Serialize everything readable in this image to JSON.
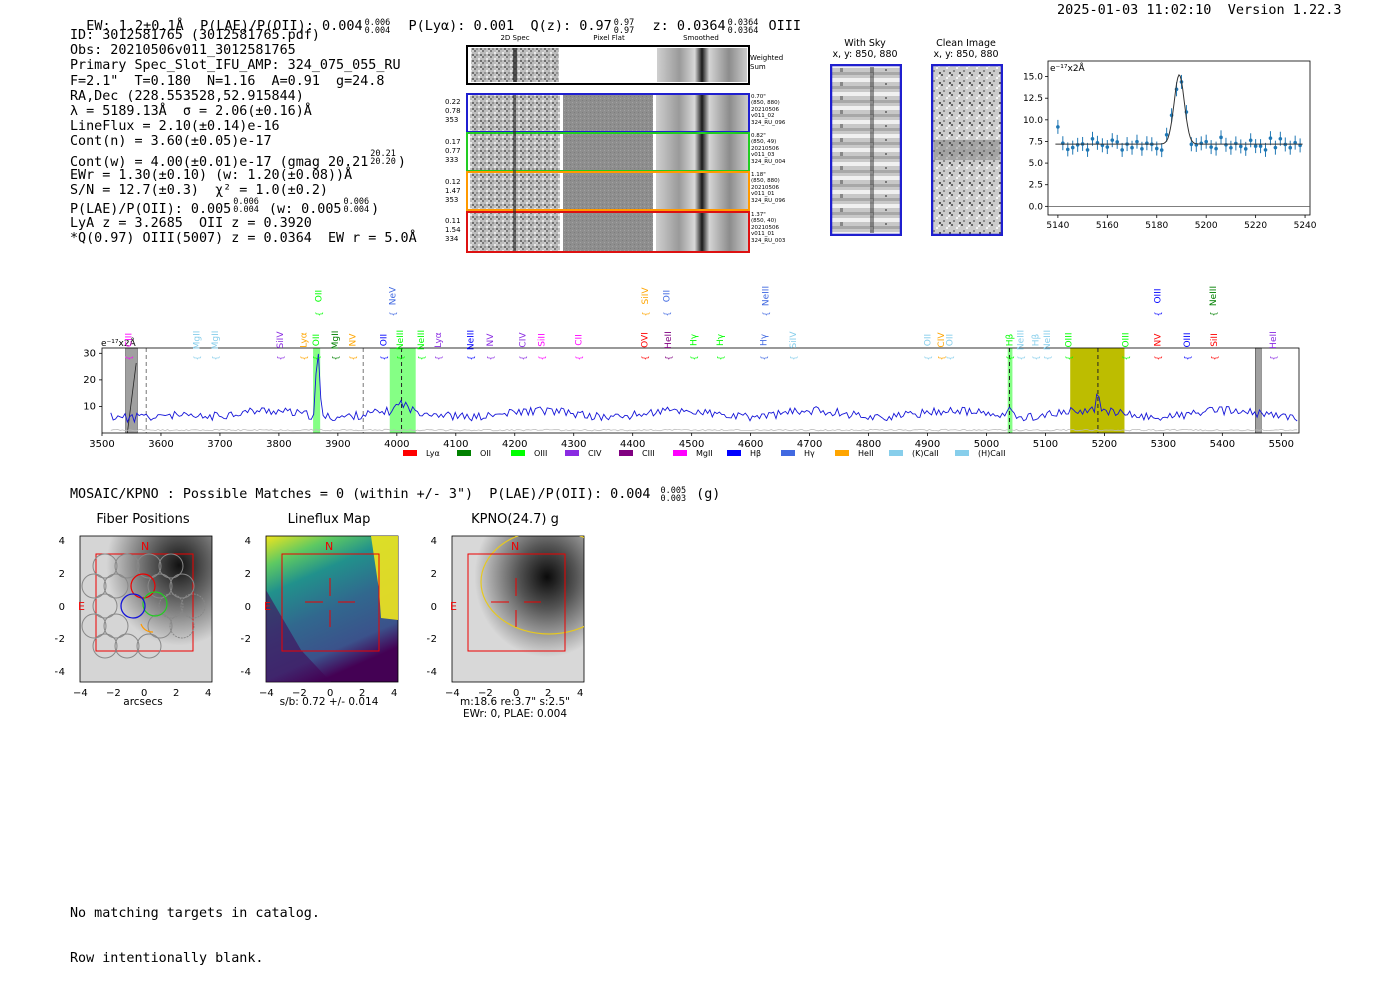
{
  "header": {
    "ew": "EW: 1.2±0.1Å",
    "plae": "P(LAE)/P(OII): 0.004",
    "plae_hi": "0.006",
    "plae_lo": "0.004",
    "plya": "P(Lyα): 0.001",
    "qz": "Q(z): 0.97",
    "qz_hi": "0.97",
    "qz_lo": "0.97",
    "z": "z: 0.0364",
    "z_hi": "0.0364",
    "z_lo": "0.0364",
    "line": "OIII",
    "timestamp": "2025-01-03 11:02:10",
    "version": "Version 1.22.3"
  },
  "info": {
    "id": "ID: 3012581765 (3012581765.pdf)",
    "obs": "Obs: 20210506v011_3012581765",
    "slot": "Primary Spec_Slot_IFU_AMP: 324_075_055_RU",
    "fwhm": "F=2.1\"  T=0.180  N=1.16  A=0.91  g=24.8",
    "radec": "RA,Dec (228.553528,52.915844)",
    "lambda": "λ = 5189.13Å  σ = 2.06(±0.16)Å",
    "lineflux": "LineFlux = 2.10(±0.14)e-16",
    "contn": "Cont(n) = 3.60(±0.05)e-17",
    "contw": "Cont(w) = 4.00(±0.01)e-17 (gmag 20.21",
    "contw_hi": "20.21",
    "contw_lo": "20.20",
    "contw_end": ")",
    "ewr": "EWr = 1.30(±0.10) (w: 1.20(±0.08))Å",
    "sn": "S/N = 12.7(±0.3)  χ² = 1.0(±0.2)",
    "plae2": "P(LAE)/P(OII): 0.005",
    "plae2_hi": "0.006",
    "plae2_lo": "0.004",
    "plae2_w": "(w: 0.005",
    "plae2_w_hi": "0.006",
    "plae2_w_lo": "0.004",
    "plae2_end": ")",
    "lya": "LyA z = 3.2685  OII z = 0.3920",
    "q": "*Q(0.97) OIII(5007) z = 0.0364  EW r = 5.0Å"
  },
  "spec2d": {
    "col_titles": [
      "2D Spec",
      "Pixel Flat",
      "Smoothed"
    ],
    "weighted_sum": "Weighted Sum",
    "rows": [
      {
        "left": [
          "0.22",
          "0.78",
          "353"
        ],
        "right": [
          "0.70\"",
          "(850, 880)",
          "20210506",
          "v011_02",
          "324_RU_096"
        ],
        "color": "#1f1fcf"
      },
      {
        "left": [
          "0.17",
          "0.77",
          "333"
        ],
        "right": [
          "0.82\"",
          "(850, 49)",
          "20210506",
          "v011_03",
          "324_RU_004"
        ],
        "color": "#22cc22"
      },
      {
        "left": [
          "0.12",
          "1.47",
          "353"
        ],
        "right": [
          "1.18\"",
          "(850, 880)",
          "20210506",
          "v011_01",
          "324_RU_096"
        ],
        "color": "#ff9900"
      },
      {
        "left": [
          "0.11",
          "1.54",
          "334"
        ],
        "right": [
          "1.37\"",
          "(850, 40)",
          "20210506",
          "v011_01",
          "324_RU_003"
        ],
        "color": "#dd1111"
      }
    ]
  },
  "cutouts": {
    "sky_title": "With Sky",
    "sky_coords": "x, y: 850, 880",
    "clean_title": "Clean Image",
    "clean_coords": "x, y: 850, 880"
  },
  "zoom_chart": {
    "yunit": "e⁻¹⁷x2Å",
    "xticks": [
      "5140",
      "5160",
      "5180",
      "5200",
      "5220",
      "5240"
    ],
    "yticks": [
      "0.0",
      "2.5",
      "5.0",
      "7.5",
      "10.0",
      "12.5",
      "15.0"
    ]
  },
  "full_spectrum": {
    "yunit": "e⁻¹⁷x2Å",
    "xticks": [
      "3500",
      "3600",
      "3700",
      "3800",
      "3900",
      "4000",
      "4100",
      "4200",
      "4300",
      "4400",
      "4500",
      "4600",
      "4700",
      "4800",
      "4900",
      "5000",
      "5100",
      "5200",
      "5300",
      "5400",
      "5500"
    ],
    "yticks": [
      "10",
      "20",
      "30"
    ],
    "legend": [
      {
        "label": "Lyα",
        "color": "#ff0000"
      },
      {
        "label": "OII",
        "color": "#008000"
      },
      {
        "label": "OIII",
        "color": "#00ff00"
      },
      {
        "label": "CIV",
        "color": "#8a2be2"
      },
      {
        "label": "CIII",
        "color": "#800080"
      },
      {
        "label": "MgII",
        "color": "#ff00ff"
      },
      {
        "label": "Hβ",
        "color": "#0000ff"
      },
      {
        "label": "Hγ",
        "color": "#4169e1"
      },
      {
        "label": "HeII",
        "color": "#ffa500"
      },
      {
        "label": "(K)CaII",
        "color": "#87ceeb"
      },
      {
        "label": "(H)CaII",
        "color": "#87ceeb"
      }
    ],
    "lines": [
      {
        "label": "CIII",
        "wave": 3545,
        "color": "#ff00ff",
        "row": 2
      },
      {
        "label": "MgII",
        "wave": 3660,
        "color": "#87ceeb",
        "row": 2
      },
      {
        "label": "MgII",
        "wave": 3692,
        "color": "#87ceeb",
        "row": 2
      },
      {
        "label": "SiIV",
        "wave": 3802,
        "color": "#8a2be2",
        "row": 2
      },
      {
        "label": "Lyα",
        "wave": 3842,
        "color": "#ffa500",
        "row": 2
      },
      {
        "label": "OII",
        "wave": 3863,
        "color": "#00ff00",
        "row": 2
      },
      {
        "label": "OII",
        "wave": 3867,
        "color": "#00ff00",
        "row": 0
      },
      {
        "label": "MgII",
        "wave": 3895,
        "color": "#008000",
        "row": 2
      },
      {
        "label": "NV",
        "wave": 3925,
        "color": "#ffa500",
        "row": 2
      },
      {
        "label": "NeV",
        "wave": 3993,
        "color": "#4169e1",
        "row": 0
      },
      {
        "label": "OII",
        "wave": 3977,
        "color": "#0000ff",
        "row": 2
      },
      {
        "label": "NeIII",
        "wave": 4005,
        "color": "#00ff00",
        "row": 2
      },
      {
        "label": "NeIII",
        "wave": 4041,
        "color": "#00ff00",
        "row": 2
      },
      {
        "label": "Lyα",
        "wave": 4070,
        "color": "#8a2be2",
        "row": 2
      },
      {
        "label": "NeIII",
        "wave": 4125,
        "color": "#0000ff",
        "row": 2
      },
      {
        "label": "NV",
        "wave": 4158,
        "color": "#8a2be2",
        "row": 2
      },
      {
        "label": "CIV",
        "wave": 4213,
        "color": "#8a2be2",
        "row": 2
      },
      {
        "label": "SiII",
        "wave": 4245,
        "color": "#ff00ff",
        "row": 2
      },
      {
        "label": "CII",
        "wave": 4308,
        "color": "#ff00ff",
        "row": 2
      },
      {
        "label": "SiIV",
        "wave": 4421,
        "color": "#ffa500",
        "row": 0
      },
      {
        "label": "OII",
        "wave": 4457,
        "color": "#4169e1",
        "row": 0
      },
      {
        "label": "OVI",
        "wave": 4420,
        "color": "#ff0000",
        "row": 2
      },
      {
        "label": "HeII",
        "wave": 4460,
        "color": "#800080",
        "row": 2
      },
      {
        "label": "Hγ",
        "wave": 4503,
        "color": "#00ff00",
        "row": 2
      },
      {
        "label": "Hγ",
        "wave": 4548,
        "color": "#00ff00",
        "row": 2
      },
      {
        "label": "NeIII",
        "wave": 4625,
        "color": "#4169e1",
        "row": 0
      },
      {
        "label": "Hγ",
        "wave": 4622,
        "color": "#4169e1",
        "row": 2
      },
      {
        "label": "SiIV",
        "wave": 4672,
        "color": "#87ceeb",
        "row": 2
      },
      {
        "label": "OII",
        "wave": 4900,
        "color": "#87ceeb",
        "row": 2
      },
      {
        "label": "CIV",
        "wave": 4923,
        "color": "#ffa500",
        "row": 2
      },
      {
        "label": "OII",
        "wave": 4937,
        "color": "#87ceeb",
        "row": 2
      },
      {
        "label": "Hβ",
        "wave": 5039,
        "color": "#00ff00",
        "row": 2
      },
      {
        "label": "NeIII",
        "wave": 5058,
        "color": "#87ceeb",
        "row": 2
      },
      {
        "label": "Hβ",
        "wave": 5083,
        "color": "#87ceeb",
        "row": 2
      },
      {
        "label": "NeIII",
        "wave": 5103,
        "color": "#87ceeb",
        "row": 2
      },
      {
        "label": "OIII",
        "wave": 5139,
        "color": "#00ff00",
        "row": 2
      },
      {
        "label": "OIII",
        "wave": 5236,
        "color": "#00ff00",
        "row": 2
      },
      {
        "label": "NV",
        "wave": 5290,
        "color": "#ff0000",
        "row": 2
      },
      {
        "label": "OIII",
        "wave": 5290,
        "color": "#0000ff",
        "row": 0
      },
      {
        "label": "OIII",
        "wave": 5340,
        "color": "#0000ff",
        "row": 2
      },
      {
        "label": "NeIII",
        "wave": 5384,
        "color": "#008000",
        "row": 0
      },
      {
        "label": "SiII",
        "wave": 5386,
        "color": "#ff0000",
        "row": 2
      },
      {
        "label": "HeII",
        "wave": 5486,
        "color": "#8a2be2",
        "row": 2
      }
    ]
  },
  "matches": {
    "text": "MOSAIC/KPNO : Possible Matches = 0 (within +/- 3\")  P(LAE)/P(OII): 0.004",
    "hi": "0.005",
    "lo": "0.003",
    "band": "(g)"
  },
  "panels": [
    {
      "title": "Fiber Positions",
      "xlabel": "arcsecs",
      "sub": ""
    },
    {
      "title": "Lineflux Map",
      "xlabel": "s/b: 0.72 +/- 0.014",
      "sub": ""
    },
    {
      "title": "KPNO(24.7) g",
      "xlabel": "m:18.6  re:3.7\"  s:2.5\"",
      "sub": "EWr: 0, PLAE: 0.004"
    }
  ],
  "panel_labels": {
    "north": "N",
    "east": "E"
  },
  "panel_ticks": [
    "−4",
    "−2",
    "0",
    "2",
    "4"
  ],
  "footer": {
    "line1": "No matching targets in catalog.",
    "line2": "Row intentionally blank."
  }
}
